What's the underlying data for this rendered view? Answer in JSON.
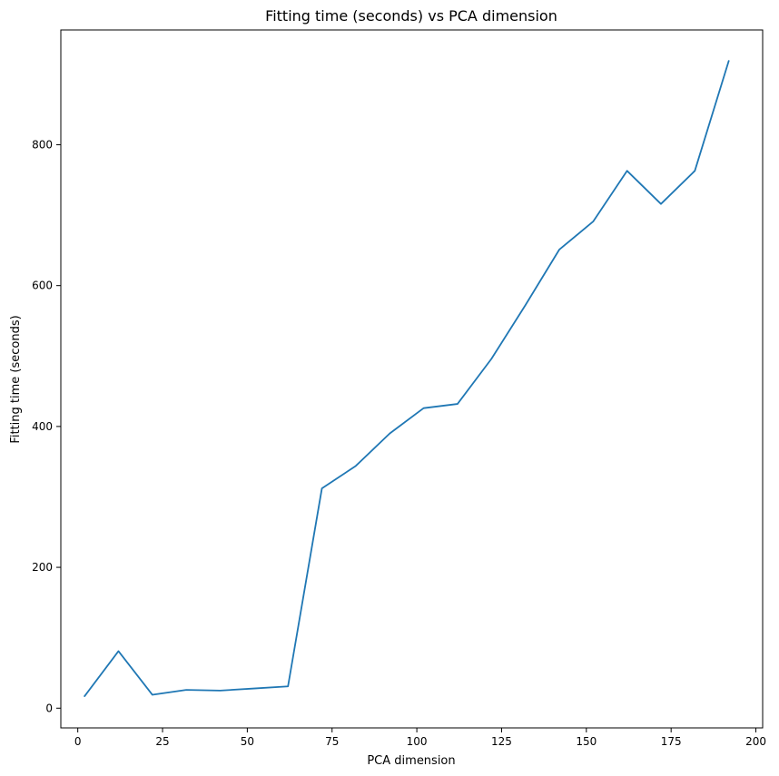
{
  "chart_data": {
    "type": "line",
    "title": "Fitting time (seconds) vs PCA dimension",
    "xlabel": "PCA dimension",
    "ylabel": "Fitting time (seconds)",
    "xlim": [
      -5,
      202
    ],
    "ylim": [
      -28,
      963
    ],
    "xticks": [
      0,
      25,
      50,
      75,
      100,
      125,
      150,
      175,
      200
    ],
    "yticks": [
      0,
      200,
      400,
      600,
      800
    ],
    "grid": false,
    "series": [
      {
        "color": "#1f77b4",
        "x": [
          2,
          12,
          22,
          32,
          42,
          52,
          62,
          72,
          82,
          92,
          102,
          112,
          122,
          132,
          142,
          152,
          162,
          172,
          182,
          192
        ],
        "y": [
          17,
          81,
          19,
          26,
          25,
          28,
          31,
          312,
          344,
          390,
          426,
          432,
          496,
          572,
          651,
          691,
          763,
          716,
          763,
          919
        ]
      }
    ]
  }
}
